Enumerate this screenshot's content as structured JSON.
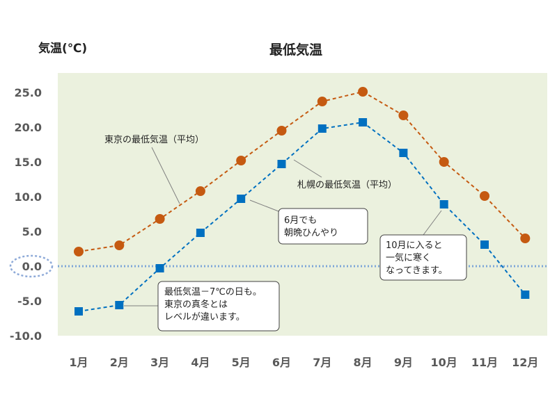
{
  "chart_data": {
    "type": "line",
    "title": "最低気温",
    "ylabel": "気温(℃)",
    "xlabel": "",
    "categories": [
      "1月",
      "2月",
      "3月",
      "4月",
      "5月",
      "6月",
      "7月",
      "8月",
      "9月",
      "10月",
      "11月",
      "12月"
    ],
    "ylim": [
      -10,
      27.5
    ],
    "yticks": [
      "25.0",
      "20.0",
      "15.0",
      "10.0",
      "5.0",
      "0.0",
      "-5.0",
      "-10.0"
    ],
    "grid": false,
    "reference_line": {
      "value": 0,
      "style": "dotted",
      "color": "#7ea6d8"
    },
    "series": [
      {
        "name": "東京の最低気温（平均）",
        "marker": "circle",
        "color": "#c55a11",
        "values": [
          2.1,
          3.0,
          6.8,
          10.8,
          15.2,
          19.5,
          23.7,
          25.1,
          21.7,
          15.0,
          10.1,
          4.0
        ]
      },
      {
        "name": "札幌の最低気温（平均）",
        "marker": "square",
        "color": "#0070c0",
        "values": [
          -6.5,
          -5.6,
          -0.3,
          4.8,
          9.7,
          14.7,
          19.8,
          20.7,
          16.3,
          8.9,
          3.1,
          -4.1
        ]
      }
    ],
    "annotations": [
      {
        "id": "tokyo-label",
        "lines": [
          "東京の最低気温（平均）"
        ],
        "boxed": false
      },
      {
        "id": "sapporo-label",
        "lines": [
          "札幌の最低気温（平均）"
        ],
        "boxed": false
      },
      {
        "id": "june-note",
        "lines": [
          "6月でも",
          "朝晩ひんやり"
        ],
        "boxed": true
      },
      {
        "id": "oct-note",
        "lines": [
          "10月に入ると",
          "一気に寒く",
          "なってきます。"
        ],
        "boxed": true
      },
      {
        "id": "winter-note",
        "lines": [
          "最低気温－7℃の日も。",
          "東京の真冬とは",
          "レベルが違います。"
        ],
        "boxed": true
      }
    ],
    "colors": {
      "plot_bg": "#ebf1de",
      "tokyo": "#c55a11",
      "sapporo": "#0070c0",
      "zero_line": "#7ea6d8"
    }
  }
}
